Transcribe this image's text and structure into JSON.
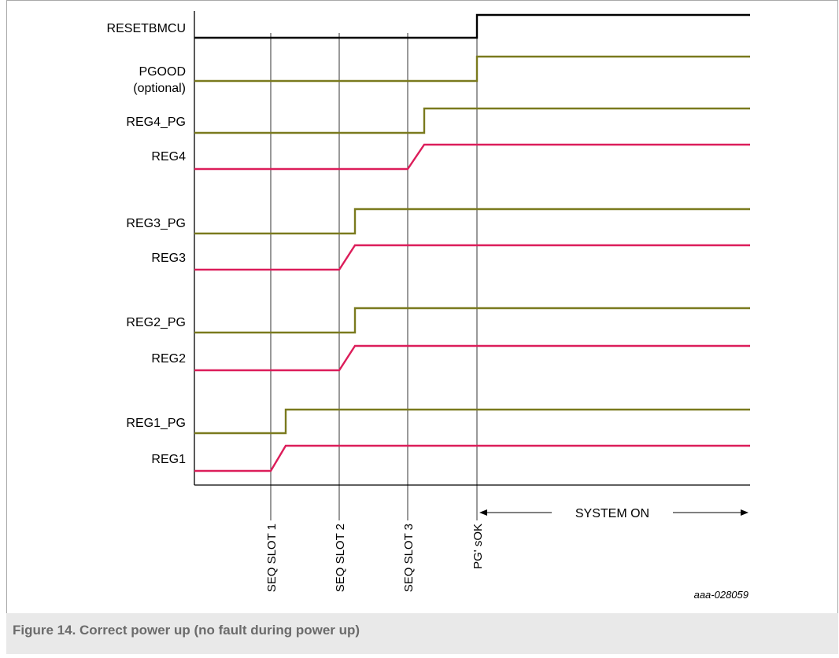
{
  "figure": {
    "caption": "Figure 14.  Correct power up (no fault during power up)",
    "drawing_id": "aaa-028059"
  },
  "colors": {
    "reset": "#000000",
    "power_good": "#7a7a1e",
    "regulator": "#dc1d5a",
    "frame": "#a8a8a8",
    "caption_bg": "#e9e9e9"
  },
  "signals": [
    {
      "label": "RESETBMCU",
      "kind": "reset"
    },
    {
      "label": "PGOOD",
      "label2": "(optional)",
      "kind": "pg"
    },
    {
      "label": "REG4_PG",
      "kind": "pg"
    },
    {
      "label": "REG4",
      "kind": "reg"
    },
    {
      "label": "REG3_PG",
      "kind": "pg"
    },
    {
      "label": "REG3",
      "kind": "reg"
    },
    {
      "label": "REG2_PG",
      "kind": "pg"
    },
    {
      "label": "REG2",
      "kind": "reg"
    },
    {
      "label": "REG1_PG",
      "kind": "pg"
    },
    {
      "label": "REG1",
      "kind": "reg"
    }
  ],
  "markers": [
    {
      "label": "SEQ SLOT 1"
    },
    {
      "label": "SEQ SLOT 2"
    },
    {
      "label": "SEQ SLOT 3"
    },
    {
      "label": "PG' sOK"
    }
  ],
  "system_on": {
    "label": "SYSTEM ON"
  }
}
